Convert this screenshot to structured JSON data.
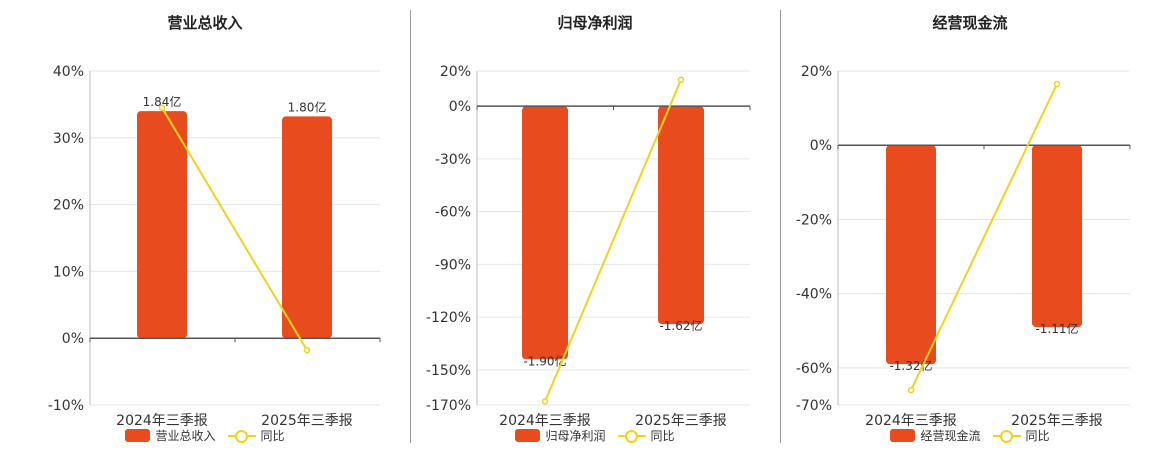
{
  "colors": {
    "bar": "#E84C1E",
    "line": "#F2D21B",
    "grid": "#e6e6e6",
    "axis": "#555555"
  },
  "chart_data": [
    {
      "type": "bar",
      "title": "营业总收入",
      "categories": [
        "2024年三季报",
        "2025年三季报"
      ],
      "bar_labels": [
        "1.84亿",
        "1.80亿"
      ],
      "bar_values": [
        34,
        33.2
      ],
      "yoy_values": [
        34.5,
        -1.8
      ],
      "ylim": [
        -10,
        40
      ],
      "yticks": [
        40,
        30,
        20,
        10,
        0,
        -10
      ],
      "series": [
        {
          "name": "营业总收入",
          "type": "bar"
        },
        {
          "name": "同比",
          "type": "line"
        }
      ]
    },
    {
      "type": "bar",
      "title": "归母净利润",
      "categories": [
        "2024年三季报",
        "2025年三季报"
      ],
      "bar_labels": [
        "-1.90亿",
        "-1.62亿"
      ],
      "bar_values": [
        -144,
        -124
      ],
      "yoy_values": [
        -168,
        15
      ],
      "ylim": [
        -170,
        20
      ],
      "yticks": [
        20,
        0,
        -30,
        -60,
        -90,
        -120,
        -150,
        -170
      ],
      "series": [
        {
          "name": "归母净利润",
          "type": "bar"
        },
        {
          "name": "同比",
          "type": "line"
        }
      ]
    },
    {
      "type": "bar",
      "title": "经营现金流",
      "categories": [
        "2024年三季报",
        "2025年三季报"
      ],
      "bar_labels": [
        "-1.32亿",
        "-1.11亿"
      ],
      "bar_values": [
        -59,
        -49
      ],
      "yoy_values": [
        -66,
        16.5
      ],
      "ylim": [
        -70,
        20
      ],
      "yticks": [
        20,
        0,
        -20,
        -40,
        -60,
        -70
      ],
      "series": [
        {
          "name": "经营现金流",
          "type": "bar"
        },
        {
          "name": "同比",
          "type": "line"
        }
      ]
    }
  ]
}
